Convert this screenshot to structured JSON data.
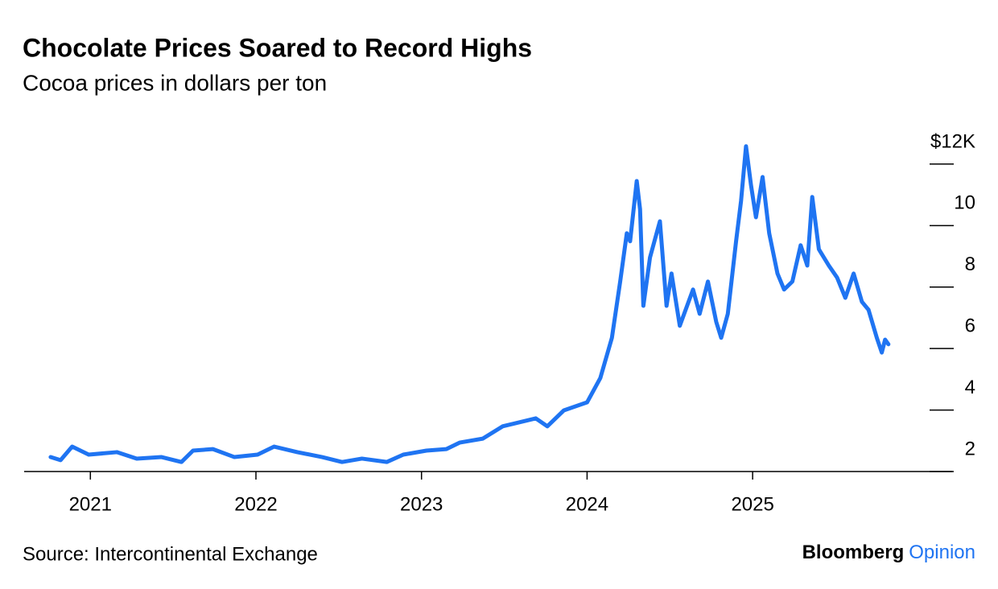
{
  "chart_data": {
    "type": "line",
    "title": "Chocolate Prices Soared to Record Highs",
    "subtitle": "Cocoa prices in dollars per ton",
    "source": "Source: Intercontinental Exchange",
    "logo": {
      "name": "Bloomberg",
      "section": "Opinion"
    },
    "color": "#1f74f2",
    "x": [
      2020.76,
      2020.82,
      2020.89,
      2020.99,
      2021.16,
      2021.28,
      2021.43,
      2021.55,
      2021.62,
      2021.74,
      2021.87,
      2022.01,
      2022.11,
      2022.25,
      2022.4,
      2022.52,
      2022.64,
      2022.79,
      2022.89,
      2023.03,
      2023.15,
      2023.23,
      2023.37,
      2023.49,
      2023.69,
      2023.76,
      2023.86,
      2024.0,
      2024.08,
      2024.15,
      2024.2,
      2024.24,
      2024.26,
      2024.3,
      2024.32,
      2024.34,
      2024.38,
      2024.42,
      2024.44,
      2024.48,
      2024.51,
      2024.56,
      2024.64,
      2024.68,
      2024.73,
      2024.78,
      2024.81,
      2024.85,
      2024.9,
      2024.93,
      2024.96,
      2024.99,
      2025.02,
      2025.06,
      2025.1,
      2025.15,
      2025.19,
      2025.24,
      2025.29,
      2025.33,
      2025.36,
      2025.4,
      2025.46,
      2025.51,
      2025.56,
      2025.61,
      2025.66,
      2025.7,
      2025.75,
      2025.78,
      2025.8,
      2025.82
    ],
    "values": [
      2.47,
      2.37,
      2.81,
      2.55,
      2.63,
      2.42,
      2.47,
      2.31,
      2.68,
      2.73,
      2.47,
      2.55,
      2.81,
      2.63,
      2.47,
      2.31,
      2.42,
      2.31,
      2.55,
      2.68,
      2.73,
      2.94,
      3.07,
      3.47,
      3.73,
      3.47,
      3.99,
      4.25,
      5.04,
      6.35,
      8.18,
      9.75,
      9.49,
      11.45,
      10.53,
      7.39,
      8.96,
      9.75,
      10.14,
      7.39,
      8.44,
      6.74,
      7.92,
      7.13,
      8.18,
      6.87,
      6.35,
      7.13,
      9.49,
      10.8,
      12.58,
      11.32,
      10.27,
      11.58,
      9.75,
      8.44,
      7.92,
      8.18,
      9.36,
      8.7,
      10.93,
      9.23,
      8.7,
      8.31,
      7.65,
      8.44,
      7.52,
      7.26,
      6.35,
      5.87,
      6.29,
      6.14
    ],
    "xlim": [
      2020.6,
      2026.2
    ],
    "xticks": [
      2021,
      2022,
      2023,
      2024,
      2025
    ],
    "ylim": [
      2,
      12.6
    ],
    "yticks": [
      2,
      4,
      6,
      8,
      10,
      {
        "value": 12,
        "label": "$12K"
      }
    ]
  }
}
